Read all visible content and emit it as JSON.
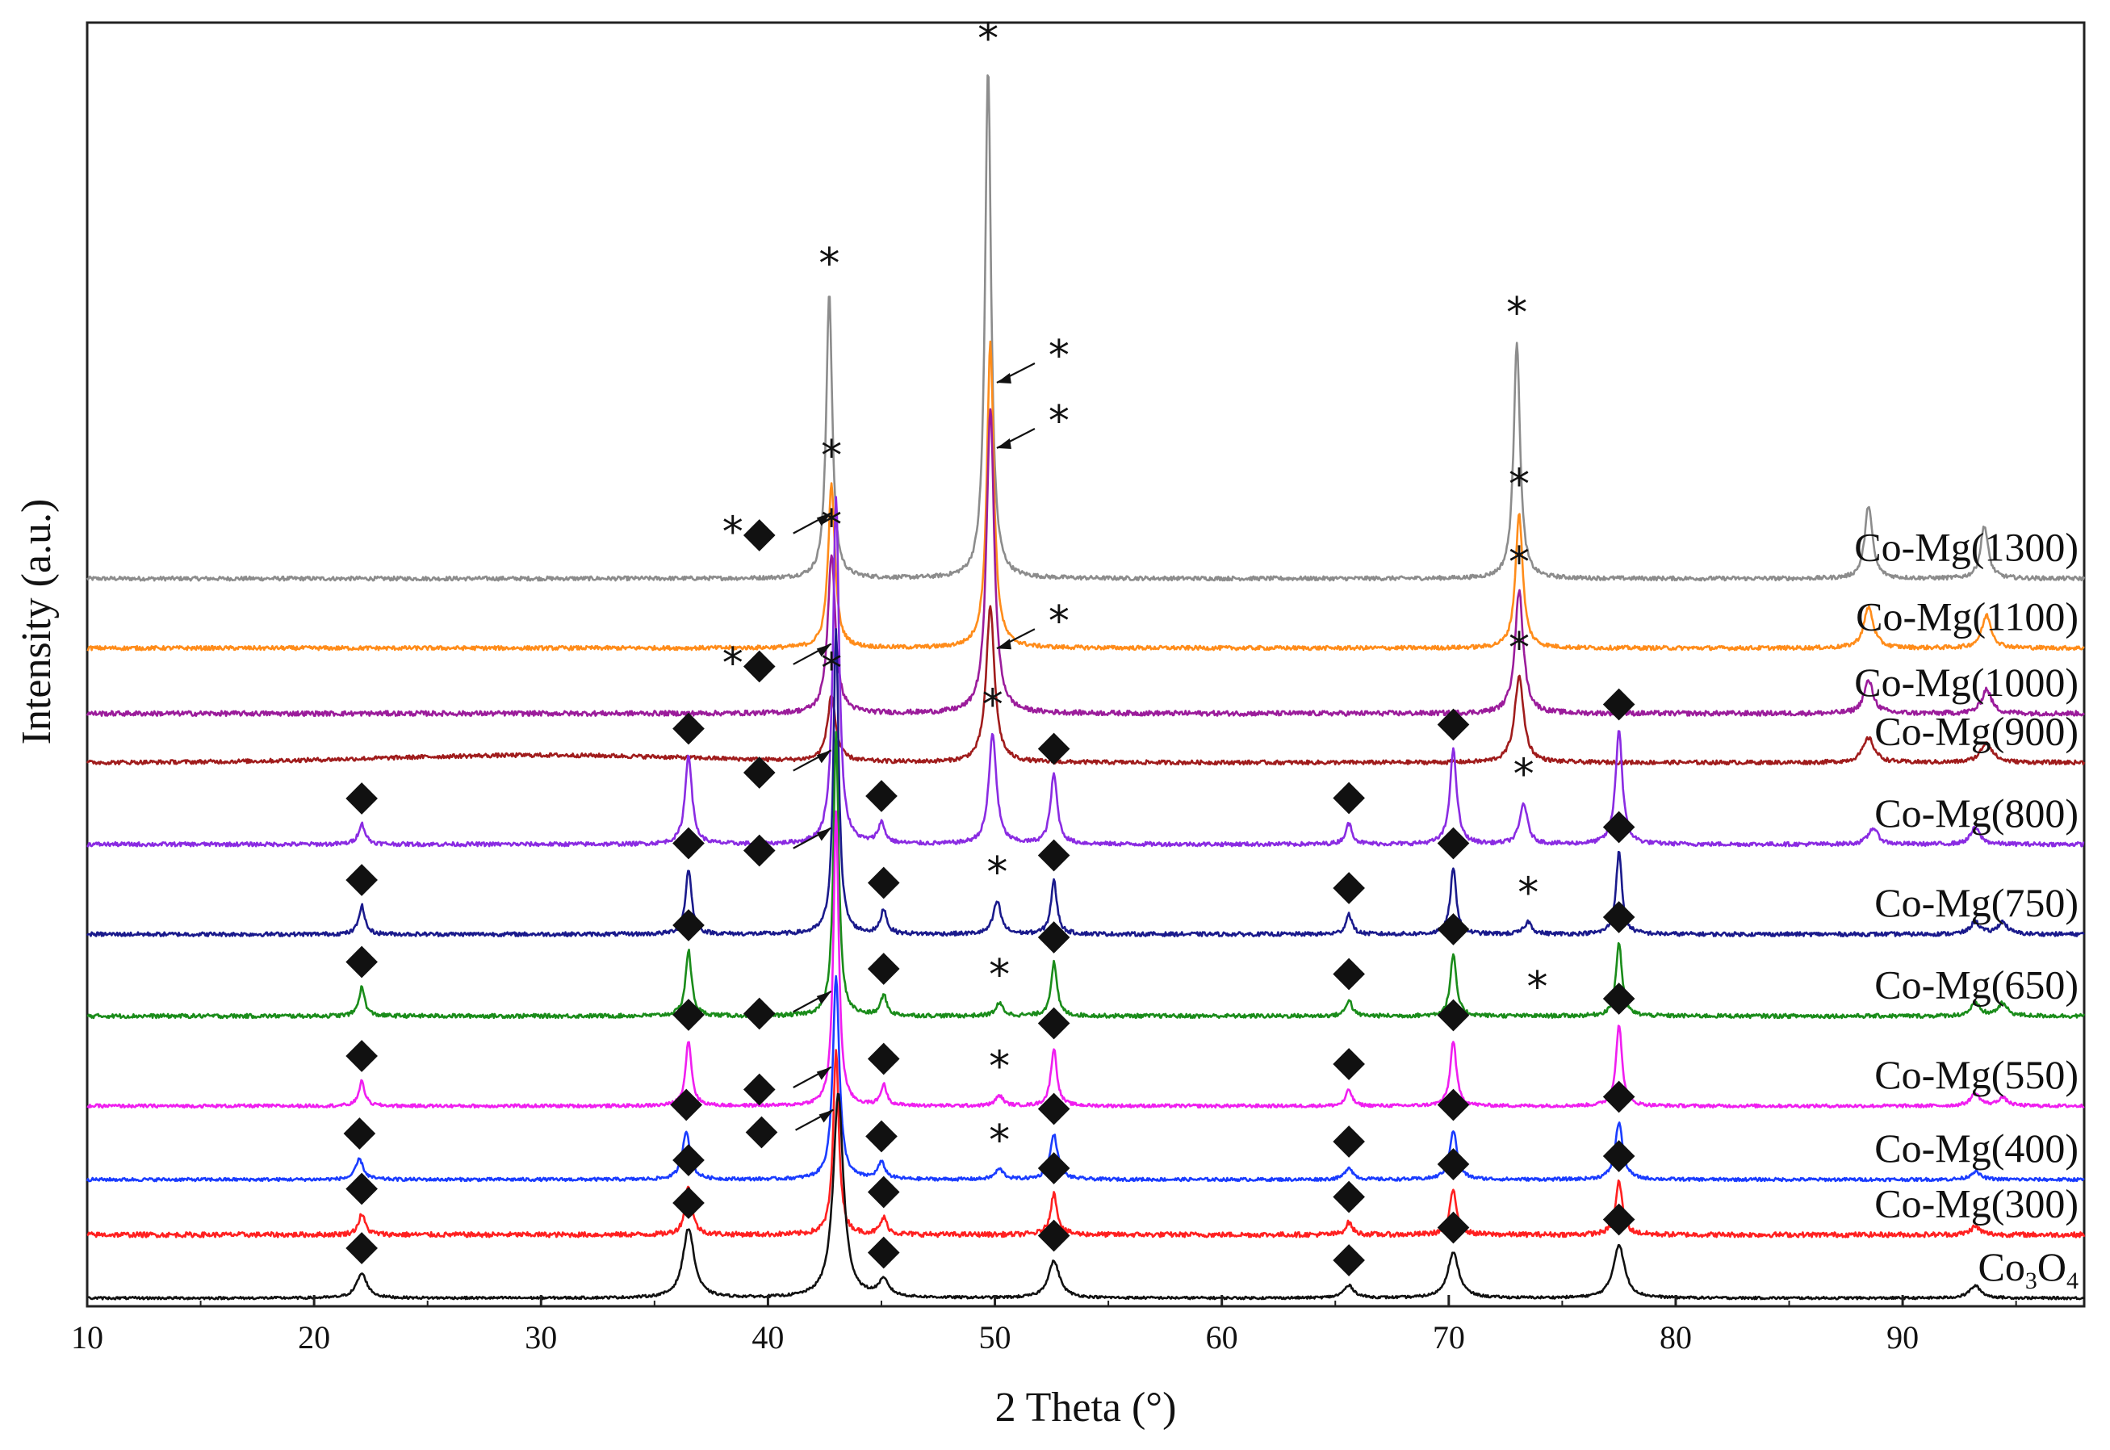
{
  "chart_data": {
    "type": "line",
    "title": "",
    "xlabel": "2 Theta (°)",
    "ylabel": "Intensity (a.u.)",
    "xlim": [
      10,
      98
    ],
    "x_ticks": [
      10,
      20,
      30,
      40,
      50,
      60,
      70,
      80,
      90
    ],
    "y_ticks": [],
    "grid": false,
    "legend": "inline labels at right end of each trace",
    "marker_legend": {
      "star": "*",
      "diamond": "◆"
    },
    "series": [
      {
        "name": "Co-Mg(1300)",
        "label": "Co-Mg(1300)",
        "color": "#8c8c8c",
        "baseline": 16.6,
        "noise": 0.05,
        "peaks": [
          {
            "x": 42.7,
            "h": 7.0,
            "w": 0.16
          },
          {
            "x": 49.7,
            "h": 12.5,
            "w": 0.16
          },
          {
            "x": 73.0,
            "h": 5.8,
            "w": 0.17
          },
          {
            "x": 88.5,
            "h": 1.8,
            "w": 0.2
          },
          {
            "x": 93.6,
            "h": 1.3,
            "w": 0.2
          }
        ],
        "markers": [
          {
            "x": 42.7,
            "symbol": "*"
          },
          {
            "x": 49.7,
            "symbol": "*"
          },
          {
            "x": 73.0,
            "symbol": "*"
          }
        ]
      },
      {
        "name": "Co-Mg(1100)",
        "label": "Co-Mg(1100)",
        "color": "#ff8c1a",
        "baseline": 14.9,
        "noise": 0.05,
        "peaks": [
          {
            "x": 42.8,
            "h": 4.0,
            "w": 0.18
          },
          {
            "x": 49.8,
            "h": 7.5,
            "w": 0.18
          },
          {
            "x": 73.1,
            "h": 3.3,
            "w": 0.19
          },
          {
            "x": 88.5,
            "h": 1.0,
            "w": 0.25
          },
          {
            "x": 93.7,
            "h": 0.8,
            "w": 0.25
          }
        ],
        "markers": [
          {
            "x": 42.8,
            "symbol": "*"
          },
          {
            "x": 73.1,
            "symbol": "*"
          },
          {
            "x": 49.8,
            "symbol": "*",
            "arrow": true
          }
        ]
      },
      {
        "name": "Co-Mg(1000)",
        "label": "Co-Mg(1000)",
        "color": "#9b1c9b",
        "baseline": 13.3,
        "noise": 0.06,
        "peaks": [
          {
            "x": 42.8,
            "h": 3.9,
            "w": 0.2
          },
          {
            "x": 49.8,
            "h": 7.5,
            "w": 0.2
          },
          {
            "x": 73.1,
            "h": 3.0,
            "w": 0.22
          },
          {
            "x": 88.5,
            "h": 0.8,
            "w": 0.25
          },
          {
            "x": 93.7,
            "h": 0.6,
            "w": 0.25
          }
        ],
        "markers": [
          {
            "x": 42.8,
            "symbol": "*"
          },
          {
            "x": 73.1,
            "symbol": "*"
          },
          {
            "x": 49.8,
            "symbol": "*",
            "arrow": true
          }
        ]
      },
      {
        "name": "Co-Mg(900)",
        "label": "Co-Mg(900)",
        "color": "#a01c1c",
        "baseline": 12.1,
        "noise": 0.05,
        "peaks": [
          {
            "x": 42.8,
            "h": 1.6,
            "w": 0.22
          },
          {
            "x": 49.8,
            "h": 3.8,
            "w": 0.22
          },
          {
            "x": 73.1,
            "h": 2.1,
            "w": 0.24
          },
          {
            "x": 88.5,
            "h": 0.6,
            "w": 0.3
          },
          {
            "x": 93.7,
            "h": 0.5,
            "w": 0.3
          }
        ],
        "markers": [
          {
            "x": 42.8,
            "symbol": "*"
          },
          {
            "x": 73.1,
            "symbol": "*"
          },
          {
            "x": 49.8,
            "symbol": "*",
            "arrow": true
          }
        ]
      },
      {
        "name": "Co-Mg(800)",
        "label": "Co-Mg(800)",
        "color": "#8a2be2",
        "baseline": 10.1,
        "noise": 0.05,
        "peaks": [
          {
            "x": 22.1,
            "h": 0.5,
            "w": 0.18
          },
          {
            "x": 36.5,
            "h": 2.2,
            "w": 0.18
          },
          {
            "x": 43.0,
            "h": 8.5,
            "w": 0.16
          },
          {
            "x": 45.0,
            "h": 0.5,
            "w": 0.18
          },
          {
            "x": 49.9,
            "h": 2.7,
            "w": 0.2
          },
          {
            "x": 52.6,
            "h": 1.7,
            "w": 0.18
          },
          {
            "x": 65.6,
            "h": 0.5,
            "w": 0.18
          },
          {
            "x": 70.2,
            "h": 2.3,
            "w": 0.18
          },
          {
            "x": 73.3,
            "h": 1.0,
            "w": 0.2
          },
          {
            "x": 77.5,
            "h": 2.8,
            "w": 0.18
          },
          {
            "x": 88.7,
            "h": 0.4,
            "w": 0.25
          },
          {
            "x": 93.2,
            "h": 0.4,
            "w": 0.25
          }
        ],
        "markers": [
          {
            "x": 22.1,
            "symbol": "◆"
          },
          {
            "x": 36.5,
            "symbol": "◆"
          },
          {
            "x": 45.0,
            "symbol": "◆"
          },
          {
            "x": 49.9,
            "symbol": "*"
          },
          {
            "x": 52.6,
            "symbol": "◆"
          },
          {
            "x": 65.6,
            "symbol": "◆"
          },
          {
            "x": 70.2,
            "symbol": "◆"
          },
          {
            "x": 73.3,
            "symbol": "*"
          },
          {
            "x": 77.5,
            "symbol": "◆"
          },
          {
            "x": 43.0,
            "symbol": "*◆",
            "arrow": true
          }
        ]
      },
      {
        "name": "Co-Mg(750)",
        "label": "Co-Mg(750)",
        "color": "#1a1a8c",
        "baseline": 7.9,
        "noise": 0.05,
        "peaks": [
          {
            "x": 22.1,
            "h": 0.7,
            "w": 0.16
          },
          {
            "x": 36.5,
            "h": 1.6,
            "w": 0.16
          },
          {
            "x": 43.0,
            "h": 7.5,
            "w": 0.14
          },
          {
            "x": 45.1,
            "h": 0.6,
            "w": 0.16
          },
          {
            "x": 50.1,
            "h": 0.8,
            "w": 0.2
          },
          {
            "x": 52.6,
            "h": 1.3,
            "w": 0.16
          },
          {
            "x": 65.6,
            "h": 0.5,
            "w": 0.16
          },
          {
            "x": 70.2,
            "h": 1.6,
            "w": 0.16
          },
          {
            "x": 73.5,
            "h": 0.3,
            "w": 0.2
          },
          {
            "x": 77.5,
            "h": 2.0,
            "w": 0.16
          },
          {
            "x": 93.2,
            "h": 0.3,
            "w": 0.25
          },
          {
            "x": 94.4,
            "h": 0.3,
            "w": 0.25
          }
        ],
        "markers": [
          {
            "x": 22.1,
            "symbol": "◆"
          },
          {
            "x": 36.5,
            "symbol": "◆"
          },
          {
            "x": 45.1,
            "symbol": "◆"
          },
          {
            "x": 50.1,
            "symbol": "*"
          },
          {
            "x": 52.6,
            "symbol": "◆"
          },
          {
            "x": 65.6,
            "symbol": "◆"
          },
          {
            "x": 70.2,
            "symbol": "◆"
          },
          {
            "x": 73.5,
            "symbol": "*"
          },
          {
            "x": 77.5,
            "symbol": "◆"
          },
          {
            "x": 43.0,
            "symbol": "*◆",
            "arrow": true
          }
        ]
      },
      {
        "name": "Co-Mg(650)",
        "label": "Co-Mg(650)",
        "color": "#1a8c1a",
        "baseline": 5.9,
        "noise": 0.05,
        "peaks": [
          {
            "x": 22.1,
            "h": 0.7,
            "w": 0.16
          },
          {
            "x": 36.5,
            "h": 1.6,
            "w": 0.16
          },
          {
            "x": 43.0,
            "h": 6.9,
            "w": 0.14
          },
          {
            "x": 45.1,
            "h": 0.5,
            "w": 0.16
          },
          {
            "x": 50.2,
            "h": 0.3,
            "w": 0.2
          },
          {
            "x": 52.6,
            "h": 1.3,
            "w": 0.16
          },
          {
            "x": 65.6,
            "h": 0.4,
            "w": 0.16
          },
          {
            "x": 70.2,
            "h": 1.5,
            "w": 0.16
          },
          {
            "x": 77.5,
            "h": 1.8,
            "w": 0.16
          },
          {
            "x": 93.2,
            "h": 0.3,
            "w": 0.25
          },
          {
            "x": 94.4,
            "h": 0.3,
            "w": 0.25
          }
        ],
        "markers": [
          {
            "x": 22.1,
            "symbol": "◆"
          },
          {
            "x": 36.5,
            "symbol": "◆"
          },
          {
            "x": 45.1,
            "symbol": "◆"
          },
          {
            "x": 50.2,
            "symbol": "*"
          },
          {
            "x": 52.6,
            "symbol": "◆"
          },
          {
            "x": 65.6,
            "symbol": "◆"
          },
          {
            "x": 70.2,
            "symbol": "◆"
          },
          {
            "x": 73.9,
            "symbol": "*"
          },
          {
            "x": 77.5,
            "symbol": "◆"
          },
          {
            "x": 43.0,
            "symbol": "◆",
            "arrow": true
          }
        ]
      },
      {
        "name": "Co-Mg(550)",
        "label": "Co-Mg(550)",
        "color": "#f01ef0",
        "baseline": 3.7,
        "noise": 0.04,
        "peaks": [
          {
            "x": 22.1,
            "h": 0.6,
            "w": 0.16
          },
          {
            "x": 36.5,
            "h": 1.6,
            "w": 0.16
          },
          {
            "x": 43.0,
            "h": 7.2,
            "w": 0.14
          },
          {
            "x": 45.1,
            "h": 0.5,
            "w": 0.16
          },
          {
            "x": 50.2,
            "h": 0.25,
            "w": 0.2
          },
          {
            "x": 52.6,
            "h": 1.4,
            "w": 0.16
          },
          {
            "x": 65.6,
            "h": 0.4,
            "w": 0.16
          },
          {
            "x": 70.2,
            "h": 1.6,
            "w": 0.16
          },
          {
            "x": 77.5,
            "h": 2.0,
            "w": 0.16
          },
          {
            "x": 93.2,
            "h": 0.3,
            "w": 0.25
          },
          {
            "x": 94.4,
            "h": 0.2,
            "w": 0.25
          }
        ],
        "markers": [
          {
            "x": 22.1,
            "symbol": "◆"
          },
          {
            "x": 36.5,
            "symbol": "◆"
          },
          {
            "x": 45.1,
            "symbol": "◆"
          },
          {
            "x": 50.2,
            "symbol": "*"
          },
          {
            "x": 52.6,
            "symbol": "◆"
          },
          {
            "x": 65.6,
            "symbol": "◆"
          },
          {
            "x": 70.2,
            "symbol": "◆"
          },
          {
            "x": 77.5,
            "symbol": "◆"
          },
          {
            "x": 43.0,
            "symbol": "◆",
            "arrow": true
          }
        ]
      },
      {
        "name": "Co-Mg(400)",
        "label": "Co-Mg(400)",
        "color": "#1a3cff",
        "baseline": 1.9,
        "noise": 0.04,
        "peaks": [
          {
            "x": 22.0,
            "h": 0.5,
            "w": 0.2
          },
          {
            "x": 36.4,
            "h": 1.2,
            "w": 0.2
          },
          {
            "x": 43.0,
            "h": 5.0,
            "w": 0.17
          },
          {
            "x": 45.0,
            "h": 0.4,
            "w": 0.2
          },
          {
            "x": 50.2,
            "h": 0.25,
            "w": 0.22
          },
          {
            "x": 52.6,
            "h": 1.1,
            "w": 0.2
          },
          {
            "x": 65.6,
            "h": 0.3,
            "w": 0.2
          },
          {
            "x": 70.2,
            "h": 1.2,
            "w": 0.2
          },
          {
            "x": 77.5,
            "h": 1.4,
            "w": 0.2
          },
          {
            "x": 93.2,
            "h": 0.2,
            "w": 0.25
          }
        ],
        "markers": [
          {
            "x": 22.0,
            "symbol": "◆"
          },
          {
            "x": 36.4,
            "symbol": "◆"
          },
          {
            "x": 45.0,
            "symbol": "◆"
          },
          {
            "x": 50.2,
            "symbol": "*"
          },
          {
            "x": 52.6,
            "symbol": "◆"
          },
          {
            "x": 65.6,
            "symbol": "◆"
          },
          {
            "x": 70.2,
            "symbol": "◆"
          },
          {
            "x": 77.5,
            "symbol": "◆"
          },
          {
            "x": 43.0,
            "symbol": "◆",
            "arrow": true
          }
        ]
      },
      {
        "name": "Co-Mg(300)",
        "label": "Co-Mg(300)",
        "color": "#ff2020",
        "baseline": 0.55,
        "noise": 0.06,
        "peaks": [
          {
            "x": 22.1,
            "h": 0.5,
            "w": 0.18
          },
          {
            "x": 36.5,
            "h": 1.2,
            "w": 0.18
          },
          {
            "x": 43.0,
            "h": 4.5,
            "w": 0.15
          },
          {
            "x": 45.1,
            "h": 0.4,
            "w": 0.18
          },
          {
            "x": 52.6,
            "h": 1.0,
            "w": 0.18
          },
          {
            "x": 65.6,
            "h": 0.3,
            "w": 0.18
          },
          {
            "x": 70.2,
            "h": 1.1,
            "w": 0.18
          },
          {
            "x": 77.5,
            "h": 1.3,
            "w": 0.18
          },
          {
            "x": 93.2,
            "h": 0.2,
            "w": 0.25
          }
        ],
        "markers": [
          {
            "x": 22.1,
            "symbol": "◆"
          },
          {
            "x": 36.5,
            "symbol": "◆"
          },
          {
            "x": 45.1,
            "symbol": "◆"
          },
          {
            "x": 52.6,
            "symbol": "◆"
          },
          {
            "x": 65.6,
            "symbol": "◆"
          },
          {
            "x": 70.2,
            "symbol": "◆"
          },
          {
            "x": 77.5,
            "symbol": "◆"
          },
          {
            "x": 43.0,
            "symbol": "◆",
            "arrow": true
          }
        ]
      },
      {
        "name": "Co3O4",
        "label": "Co",
        "label_sub": "3",
        "label_mid": "O",
        "label_sub2": "4",
        "color": "#111111",
        "baseline": -1.0,
        "noise": 0.03,
        "peaks": [
          {
            "x": 22.1,
            "h": 0.6,
            "w": 0.28
          },
          {
            "x": 36.5,
            "h": 1.7,
            "w": 0.3
          },
          {
            "x": 43.1,
            "h": 5.0,
            "w": 0.27
          },
          {
            "x": 45.1,
            "h": 0.4,
            "w": 0.28
          },
          {
            "x": 52.6,
            "h": 0.9,
            "w": 0.3
          },
          {
            "x": 65.6,
            "h": 0.3,
            "w": 0.28
          },
          {
            "x": 70.2,
            "h": 1.1,
            "w": 0.3
          },
          {
            "x": 77.5,
            "h": 1.3,
            "w": 0.3
          },
          {
            "x": 93.2,
            "h": 0.3,
            "w": 0.3
          }
        ],
        "markers": [
          {
            "x": 22.1,
            "symbol": "◆"
          },
          {
            "x": 36.5,
            "symbol": "◆"
          },
          {
            "x": 45.1,
            "symbol": "◆"
          },
          {
            "x": 52.6,
            "symbol": "◆"
          },
          {
            "x": 65.6,
            "symbol": "◆"
          },
          {
            "x": 70.2,
            "symbol": "◆"
          },
          {
            "x": 77.5,
            "symbol": "◆"
          },
          {
            "x": 43.1,
            "symbol": "◆",
            "arrow": true
          }
        ]
      }
    ],
    "ylim": [
      -1.2,
      30.2
    ]
  }
}
